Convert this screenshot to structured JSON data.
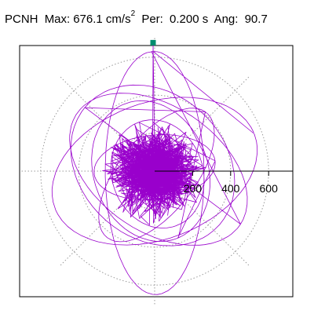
{
  "header": {
    "station": "PCNH",
    "max_label": "Max:",
    "max_value": "676.1 cm/s",
    "max_exp": "2",
    "per_label": "Per:",
    "per_value": "0.200 s",
    "ang_label": "Ang:",
    "ang_value": "90.7"
  },
  "chart_data": {
    "type": "polar-hodogram",
    "units": "cm/s2",
    "max": 676.1,
    "period_s": 0.2,
    "angle_deg": 90.7,
    "radial_ticks": [
      200,
      400,
      600
    ],
    "radial_tick_labels": [
      "200",
      "400",
      "600"
    ],
    "radial_max": 720,
    "grid": true,
    "grid_spokes_deg": [
      0,
      45,
      90,
      135,
      180,
      225,
      270,
      315
    ],
    "trace_color": "#9900cc",
    "marker_color": "#008c6e",
    "grid_color": "#9a9a9a",
    "peak_marker": {
      "angle_deg": 90.7,
      "value": 676.1
    }
  }
}
